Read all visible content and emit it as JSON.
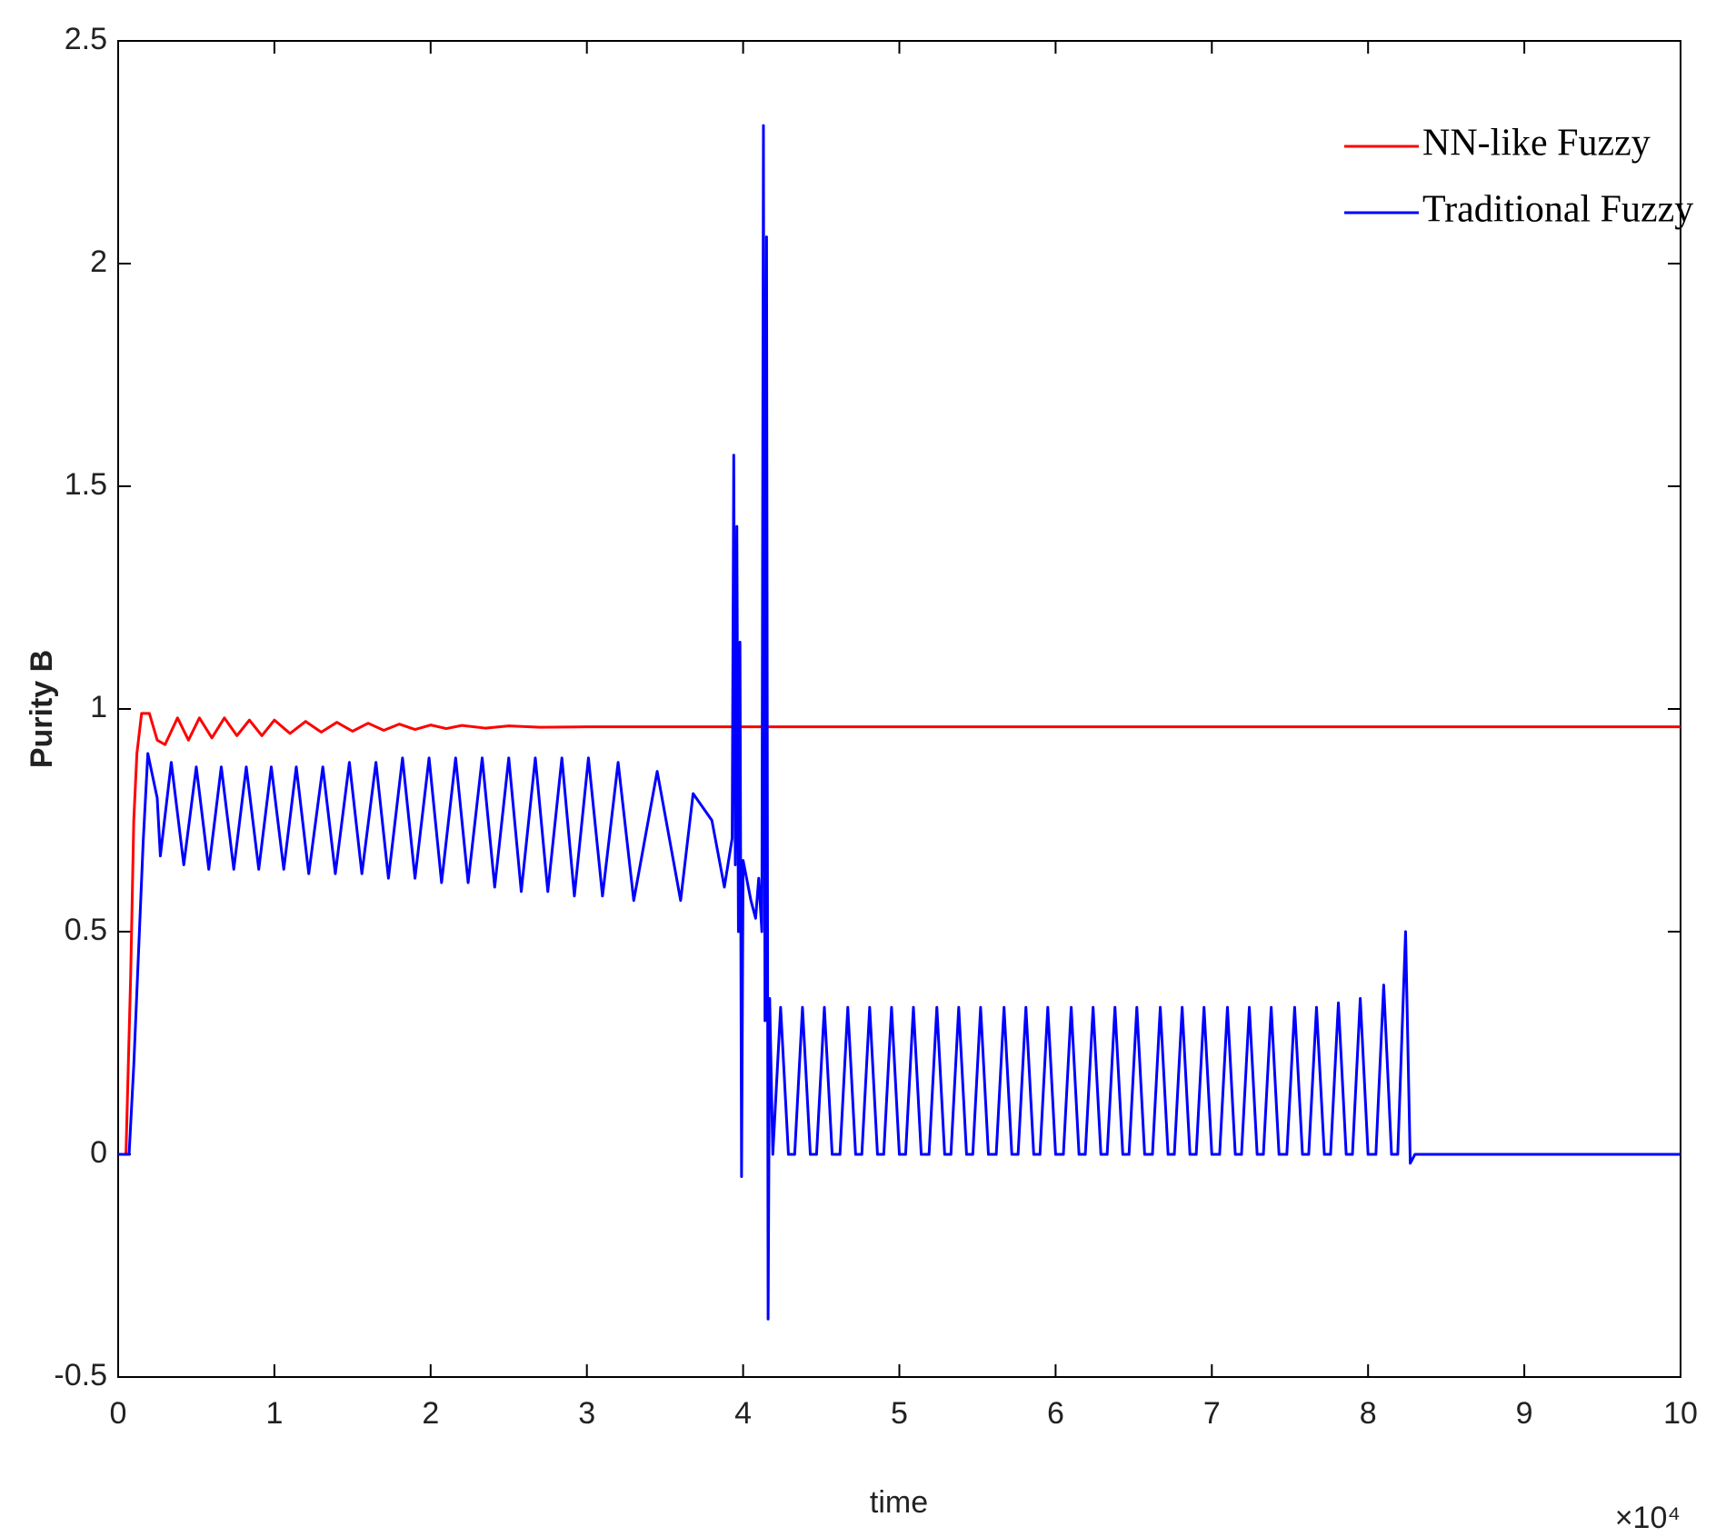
{
  "chart_data": {
    "type": "line",
    "xlabel": "time",
    "ylabel": "Purity B",
    "x_multiplier": "×10⁴",
    "xlim": [
      0,
      10
    ],
    "xticks": [
      0,
      1,
      2,
      3,
      4,
      5,
      6,
      7,
      8,
      9,
      10
    ],
    "ylim": [
      -0.5,
      2.5
    ],
    "yticks": [
      -0.5,
      0,
      0.5,
      1,
      1.5,
      2,
      2.5
    ],
    "legend": "upper right",
    "series": [
      {
        "name": "NN-like Fuzzy",
        "color": "#ff0000",
        "x": [
          0,
          0.05,
          0.08,
          0.1,
          0.12,
          0.15,
          0.2,
          0.25,
          0.3,
          0.38,
          0.45,
          0.52,
          0.6,
          0.68,
          0.76,
          0.84,
          0.92,
          1.0,
          1.1,
          1.2,
          1.3,
          1.4,
          1.5,
          1.6,
          1.7,
          1.8,
          1.9,
          2.0,
          2.1,
          2.2,
          2.35,
          2.5,
          2.7,
          3.0,
          10
        ],
        "values": [
          0,
          0,
          0.4,
          0.75,
          0.9,
          0.99,
          0.99,
          0.93,
          0.92,
          0.98,
          0.93,
          0.98,
          0.935,
          0.98,
          0.94,
          0.975,
          0.94,
          0.975,
          0.945,
          0.972,
          0.948,
          0.97,
          0.95,
          0.968,
          0.952,
          0.966,
          0.954,
          0.964,
          0.956,
          0.963,
          0.957,
          0.962,
          0.959,
          0.96,
          0.96
        ]
      },
      {
        "name": "Traditional Fuzzy",
        "color": "#0000ff",
        "x": [
          0,
          0.07,
          0.1,
          0.13,
          0.16,
          0.19,
          0.25,
          0.27,
          0.34,
          0.42,
          0.5,
          0.58,
          0.66,
          0.74,
          0.82,
          0.9,
          0.98,
          1.06,
          1.14,
          1.22,
          1.31,
          1.39,
          1.48,
          1.56,
          1.65,
          1.73,
          1.82,
          1.9,
          1.99,
          2.07,
          2.16,
          2.24,
          2.33,
          2.41,
          2.5,
          2.58,
          2.67,
          2.75,
          2.84,
          2.92,
          3.01,
          3.1,
          3.2,
          3.3,
          3.45,
          3.6,
          3.68,
          3.8,
          3.88,
          3.93,
          3.94,
          3.95,
          3.96,
          3.97,
          3.98,
          3.99,
          4.0,
          4.05,
          4.08,
          4.1,
          4.12,
          4.13,
          4.14,
          4.15,
          4.16,
          4.17,
          4.19,
          4.24,
          4.29,
          4.33,
          4.38,
          4.43,
          4.47,
          4.52,
          4.57,
          4.62,
          4.67,
          4.72,
          4.76,
          4.81,
          4.86,
          4.9,
          4.95,
          5.0,
          5.04,
          5.09,
          5.14,
          5.19,
          5.24,
          5.29,
          5.33,
          5.38,
          5.43,
          5.47,
          5.52,
          5.57,
          5.62,
          5.67,
          5.72,
          5.76,
          5.81,
          5.86,
          5.9,
          5.95,
          6.0,
          6.05,
          6.1,
          6.15,
          6.19,
          6.24,
          6.29,
          6.33,
          6.38,
          6.43,
          6.47,
          6.52,
          6.57,
          6.62,
          6.67,
          6.72,
          6.76,
          6.81,
          6.86,
          6.9,
          6.95,
          7.0,
          7.05,
          7.1,
          7.15,
          7.19,
          7.24,
          7.29,
          7.33,
          7.38,
          7.43,
          7.48,
          7.53,
          7.58,
          7.62,
          7.67,
          7.72,
          7.76,
          7.81,
          7.86,
          7.9,
          7.95,
          8.0,
          8.05,
          8.1,
          8.15,
          8.19,
          8.24,
          8.27,
          8.3,
          10
        ],
        "values": [
          0,
          0,
          0.2,
          0.45,
          0.7,
          0.9,
          0.8,
          0.67,
          0.88,
          0.65,
          0.87,
          0.64,
          0.87,
          0.64,
          0.87,
          0.64,
          0.87,
          0.64,
          0.87,
          0.63,
          0.87,
          0.63,
          0.88,
          0.63,
          0.88,
          0.62,
          0.89,
          0.62,
          0.89,
          0.61,
          0.89,
          0.61,
          0.89,
          0.6,
          0.89,
          0.59,
          0.89,
          0.59,
          0.89,
          0.58,
          0.89,
          0.58,
          0.88,
          0.57,
          0.86,
          0.57,
          0.81,
          0.75,
          0.6,
          0.71,
          1.57,
          0.65,
          1.41,
          0.5,
          1.15,
          -0.05,
          0.66,
          0.57,
          0.53,
          0.62,
          0.5,
          2.31,
          0.3,
          2.06,
          -0.37,
          0.35,
          0,
          0.33,
          0,
          0,
          0.33,
          0,
          0,
          0.33,
          0,
          0,
          0.33,
          0,
          0,
          0.33,
          0,
          0,
          0.33,
          0,
          0,
          0.33,
          0,
          0,
          0.33,
          0,
          0,
          0.33,
          0,
          0,
          0.33,
          0,
          0,
          0.33,
          0,
          0,
          0.33,
          0,
          0,
          0.33,
          0,
          0,
          0.33,
          0,
          0,
          0.33,
          0,
          0,
          0.33,
          0,
          0,
          0.33,
          0,
          0,
          0.33,
          0,
          0,
          0.33,
          0,
          0,
          0.33,
          0,
          0,
          0.33,
          0,
          0,
          0.33,
          0,
          0,
          0.33,
          0,
          0,
          0.33,
          0,
          0,
          0.33,
          0,
          0,
          0.34,
          0,
          0,
          0.35,
          0,
          0,
          0.38,
          0,
          0,
          0.5,
          -0.02,
          0,
          0
        ]
      }
    ]
  }
}
